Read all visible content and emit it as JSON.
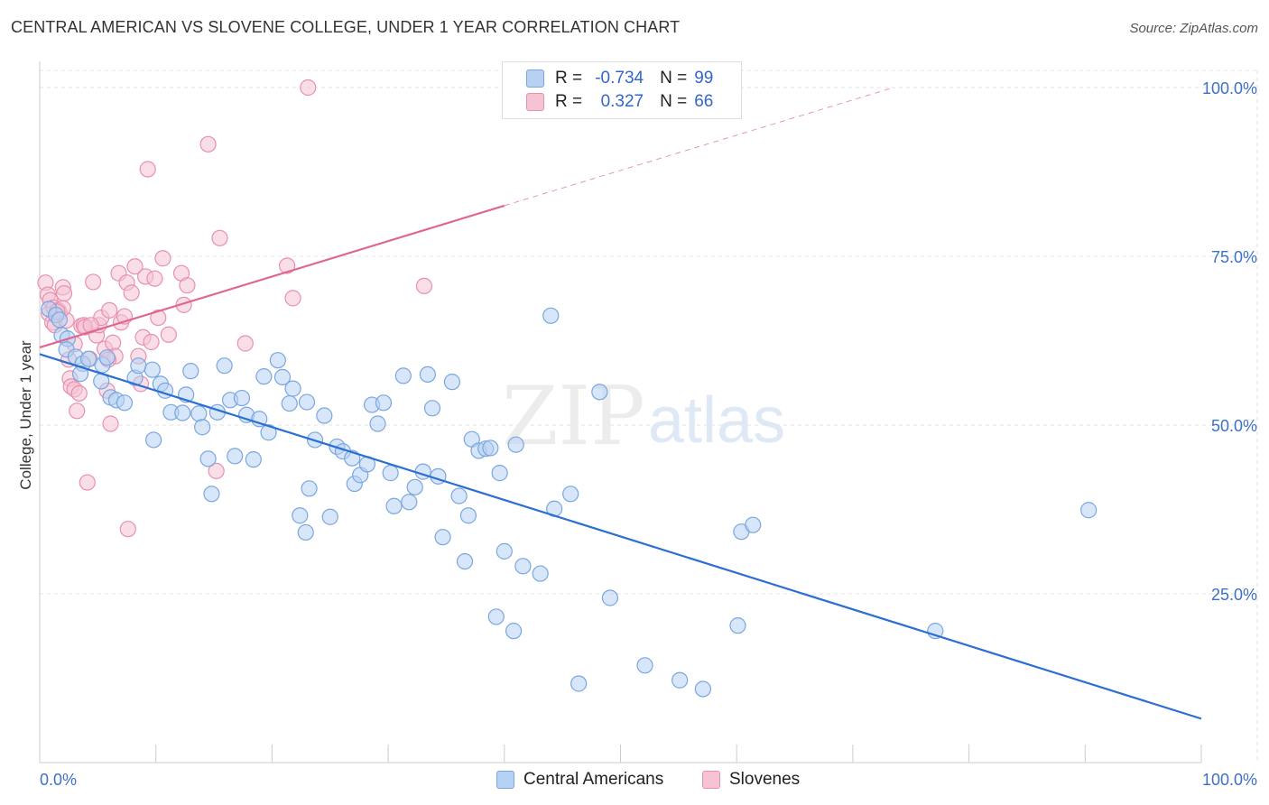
{
  "header": {
    "title": "CENTRAL AMERICAN VS SLOVENE COLLEGE, UNDER 1 YEAR CORRELATION CHART",
    "source": "Source: ZipAtlas.com"
  },
  "watermark": {
    "zip": "ZIP",
    "atlas": "atlas"
  },
  "legend": {
    "rows": [
      {
        "r_label": "R =",
        "r_value": "-0.734",
        "n_label": "N =",
        "n_value": "99"
      },
      {
        "r_label": "R =",
        "r_value": "0.327",
        "n_label": "N =",
        "n_value": "66"
      }
    ]
  },
  "bottom_legend": {
    "items": [
      {
        "label": "Central Americans"
      },
      {
        "label": "Slovenes"
      }
    ]
  },
  "colors": {
    "blue_fill": "#b7d1f3",
    "blue_stroke": "#7aa6e0",
    "blue_line": "#2a6fd1",
    "pink_fill": "#f6c3d3",
    "pink_stroke": "#e890ad",
    "pink_line": "#e06690",
    "tick_label": "#3d70c7",
    "grid": "#e3e3e3"
  },
  "chart_data": {
    "type": "scatter",
    "title": "CENTRAL AMERICAN VS SLOVENE COLLEGE, UNDER 1 YEAR CORRELATION CHART",
    "xlabel": "",
    "ylabel": "College, Under 1 year",
    "xlim": [
      0,
      100
    ],
    "ylim": [
      0,
      104
    ],
    "x_tick_labels": [
      "0.0%",
      "100.0%"
    ],
    "y_ticks": [
      25,
      50,
      75,
      100
    ],
    "y_tick_labels": [
      "25.0%",
      "50.0%",
      "75.0%",
      "100.0%"
    ],
    "grid": "horizontal dashed",
    "legend_position": "top-center",
    "series": [
      {
        "name": "Central Americans",
        "r": -0.734,
        "n": 99,
        "trend": {
          "x": [
            0,
            100
          ],
          "y": [
            60.5,
            6.5
          ]
        },
        "points": [
          [
            0.8,
            67.2
          ],
          [
            1.4,
            66.3
          ],
          [
            1.7,
            65.6
          ],
          [
            1.9,
            63.3
          ],
          [
            2.4,
            62.8
          ],
          [
            2.3,
            61.2
          ],
          [
            3.1,
            60.1
          ],
          [
            3.7,
            59.1
          ],
          [
            3.5,
            57.6
          ],
          [
            4.2,
            59.8
          ],
          [
            5.4,
            58.9
          ],
          [
            5.3,
            56.5
          ],
          [
            6.1,
            54.1
          ],
          [
            6.6,
            53.7
          ],
          [
            7.3,
            53.3
          ],
          [
            8.2,
            57.0
          ],
          [
            8.5,
            58.8
          ],
          [
            9.7,
            58.2
          ],
          [
            10.4,
            56.1
          ],
          [
            10.8,
            55.1
          ],
          [
            11.3,
            51.9
          ],
          [
            12.3,
            51.8
          ],
          [
            12.6,
            54.5
          ],
          [
            13.0,
            58.0
          ],
          [
            13.7,
            51.7
          ],
          [
            14.0,
            49.7
          ],
          [
            9.8,
            47.8
          ],
          [
            14.5,
            45.0
          ],
          [
            14.8,
            39.8
          ],
          [
            15.3,
            51.9
          ],
          [
            15.9,
            58.8
          ],
          [
            16.4,
            53.7
          ],
          [
            16.8,
            45.4
          ],
          [
            17.4,
            54.0
          ],
          [
            17.8,
            51.5
          ],
          [
            18.4,
            44.9
          ],
          [
            18.9,
            50.9
          ],
          [
            19.3,
            57.2
          ],
          [
            19.7,
            48.9
          ],
          [
            20.5,
            59.6
          ],
          [
            20.9,
            57.1
          ],
          [
            21.5,
            53.2
          ],
          [
            21.8,
            55.4
          ],
          [
            23.0,
            53.4
          ],
          [
            24.5,
            51.4
          ],
          [
            23.7,
            47.8
          ],
          [
            23.2,
            40.6
          ],
          [
            22.4,
            36.6
          ],
          [
            22.9,
            34.1
          ],
          [
            25.0,
            36.4
          ],
          [
            25.6,
            46.8
          ],
          [
            26.1,
            46.1
          ],
          [
            26.9,
            45.1
          ],
          [
            27.1,
            41.3
          ],
          [
            27.6,
            42.6
          ],
          [
            28.2,
            44.2
          ],
          [
            28.6,
            53.0
          ],
          [
            29.1,
            50.2
          ],
          [
            29.6,
            53.3
          ],
          [
            30.2,
            42.9
          ],
          [
            30.5,
            38.0
          ],
          [
            31.3,
            57.3
          ],
          [
            31.8,
            38.6
          ],
          [
            32.3,
            40.8
          ],
          [
            33.0,
            43.1
          ],
          [
            33.4,
            57.5
          ],
          [
            33.8,
            52.5
          ],
          [
            34.3,
            42.4
          ],
          [
            34.7,
            33.4
          ],
          [
            35.5,
            56.4
          ],
          [
            36.1,
            39.5
          ],
          [
            36.6,
            29.8
          ],
          [
            36.9,
            36.6
          ],
          [
            37.2,
            47.9
          ],
          [
            37.8,
            46.2
          ],
          [
            38.4,
            46.5
          ],
          [
            38.8,
            46.6
          ],
          [
            39.6,
            42.9
          ],
          [
            39.3,
            21.6
          ],
          [
            40.0,
            31.3
          ],
          [
            40.8,
            19.5
          ],
          [
            41.0,
            47.1
          ],
          [
            41.6,
            29.1
          ],
          [
            43.1,
            28.0
          ],
          [
            44.3,
            37.6
          ],
          [
            44.0,
            66.2
          ],
          [
            45.7,
            39.8
          ],
          [
            46.4,
            11.7
          ],
          [
            48.2,
            54.9
          ],
          [
            49.1,
            24.4
          ],
          [
            52.1,
            14.4
          ],
          [
            55.1,
            12.2
          ],
          [
            57.1,
            10.9
          ],
          [
            60.1,
            20.3
          ],
          [
            60.4,
            34.2
          ],
          [
            61.4,
            35.2
          ],
          [
            77.1,
            19.5
          ],
          [
            90.3,
            37.4
          ],
          [
            5.8,
            60.0
          ]
        ]
      },
      {
        "name": "Slovenes",
        "r": 0.327,
        "n": 66,
        "trend": {
          "x": [
            0,
            40
          ],
          "y": [
            61.5,
            82.5
          ]
        },
        "trend_dashed": {
          "x": [
            40,
            73.5
          ],
          "y": [
            82.5,
            100
          ]
        },
        "points": [
          [
            0.5,
            71.1
          ],
          [
            0.7,
            69.3
          ],
          [
            0.8,
            66.5
          ],
          [
            0.9,
            68.5
          ],
          [
            1.1,
            65.2
          ],
          [
            1.3,
            64.8
          ],
          [
            1.2,
            67.4
          ],
          [
            1.6,
            67.0
          ],
          [
            1.7,
            66.6
          ],
          [
            2.0,
            70.4
          ],
          [
            2.1,
            69.5
          ],
          [
            2.3,
            65.5
          ],
          [
            2.5,
            59.7
          ],
          [
            2.6,
            56.9
          ],
          [
            2.7,
            55.7
          ],
          [
            3.0,
            55.3
          ],
          [
            3.2,
            52.1
          ],
          [
            3.4,
            54.7
          ],
          [
            3.6,
            64.7
          ],
          [
            3.8,
            64.8
          ],
          [
            3.9,
            64.5
          ],
          [
            4.1,
            41.5
          ],
          [
            4.3,
            59.8
          ],
          [
            4.6,
            71.2
          ],
          [
            4.9,
            63.3
          ],
          [
            5.1,
            64.8
          ],
          [
            5.3,
            65.9
          ],
          [
            5.6,
            61.3
          ],
          [
            5.8,
            55.1
          ],
          [
            6.0,
            67.0
          ],
          [
            6.3,
            62.2
          ],
          [
            6.5,
            60.2
          ],
          [
            6.8,
            72.5
          ],
          [
            7.0,
            65.2
          ],
          [
            7.3,
            66.1
          ],
          [
            7.5,
            71.1
          ],
          [
            7.6,
            34.6
          ],
          [
            7.9,
            69.6
          ],
          [
            8.2,
            73.5
          ],
          [
            8.5,
            60.2
          ],
          [
            8.7,
            56.1
          ],
          [
            8.9,
            63.0
          ],
          [
            9.1,
            72.0
          ],
          [
            9.3,
            87.9
          ],
          [
            9.6,
            62.3
          ],
          [
            9.9,
            71.7
          ],
          [
            10.2,
            65.9
          ],
          [
            10.6,
            74.7
          ],
          [
            11.1,
            63.4
          ],
          [
            12.2,
            72.5
          ],
          [
            12.4,
            67.8
          ],
          [
            12.7,
            70.7
          ],
          [
            14.5,
            91.6
          ],
          [
            15.2,
            43.2
          ],
          [
            15.5,
            77.7
          ],
          [
            17.7,
            62.1
          ],
          [
            21.3,
            73.6
          ],
          [
            21.8,
            68.8
          ],
          [
            23.1,
            100.0
          ],
          [
            33.1,
            70.6
          ],
          [
            6.1,
            50.2
          ],
          [
            2.0,
            67.3
          ],
          [
            4.4,
            64.8
          ],
          [
            1.5,
            66.8
          ],
          [
            3.0,
            62.0
          ],
          [
            5.9,
            59.7
          ]
        ]
      }
    ]
  }
}
